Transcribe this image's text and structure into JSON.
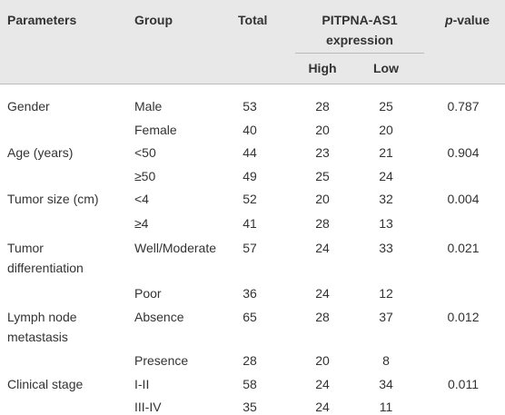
{
  "header": {
    "parameters": "Parameters",
    "group": "Group",
    "total": "Total",
    "expression": "PITPNA-AS1 expression",
    "high": "High",
    "low": "Low",
    "p_value": [
      "p",
      "-value"
    ]
  },
  "rows": [
    {
      "parameter": "Gender",
      "group": "Male",
      "total": "53",
      "high": "28",
      "low": "25",
      "p_value": "0.787"
    },
    {
      "group": "Female",
      "total": "40",
      "high": "20",
      "low": "20"
    },
    {
      "parameter": "Age (years)",
      "group": "<50",
      "total": "44",
      "high": "23",
      "low": "21",
      "p_value": "0.904"
    },
    {
      "group": "≥50",
      "total": "49",
      "high": "25",
      "low": "24"
    },
    {
      "parameter": "Tumor size (cm)",
      "group": "<4",
      "total": "52",
      "high": "20",
      "low": "32",
      "p_value": "0.004"
    },
    {
      "group": "≥4",
      "total": "41",
      "high": "28",
      "low": "13"
    },
    {
      "parameter": "Tumor differentiation",
      "group": "Well/Moderate",
      "total": "57",
      "high": "24",
      "low": "33",
      "p_value": "0.021"
    },
    {
      "group": "Poor",
      "total": "36",
      "high": "24",
      "low": "12"
    },
    {
      "parameter": "Lymph node metastasis",
      "group": "Absence",
      "total": "65",
      "high": "28",
      "low": "37",
      "p_value": "0.012"
    },
    {
      "group": "Presence",
      "total": "28",
      "high": "20",
      "low": "8"
    },
    {
      "parameter": "Clinical stage",
      "group": "I-II",
      "total": "58",
      "high": "24",
      "low": "34",
      "p_value": "0.011"
    },
    {
      "group": "III-IV",
      "total": "35",
      "high": "24",
      "low": "11"
    }
  ]
}
